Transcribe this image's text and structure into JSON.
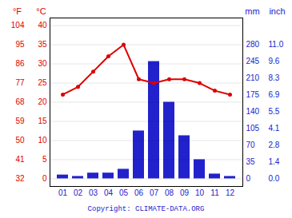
{
  "chart_data": {
    "type": "bar",
    "categories": [
      "01",
      "02",
      "03",
      "04",
      "05",
      "06",
      "07",
      "08",
      "09",
      "10",
      "11",
      "12"
    ],
    "series": [
      {
        "type": "bar",
        "axis": "y2",
        "color": "#2222cc",
        "values": [
          8,
          5,
          12,
          12,
          20,
          100,
          245,
          160,
          90,
          40,
          10,
          5
        ]
      },
      {
        "type": "line",
        "marker": "circle",
        "color": "#dd0000",
        "values": [
          22,
          24,
          28,
          32,
          35,
          26,
          25,
          26,
          26,
          25,
          23,
          22
        ]
      }
    ],
    "ylabel": "°C",
    "ylim": [
      -2.0,
      42.0
    ],
    "yticks": [
      0,
      5,
      10,
      15,
      20,
      25,
      30,
      35,
      40
    ],
    "y_alt_label": "°F",
    "y_alt_ticks": [
      {
        "value": 0,
        "label": "32"
      },
      {
        "value": 5,
        "label": "41"
      },
      {
        "value": 10,
        "label": "50"
      },
      {
        "value": 15,
        "label": "59"
      },
      {
        "value": 20,
        "label": "68"
      },
      {
        "value": 25,
        "label": "77"
      },
      {
        "value": 30,
        "label": "86"
      },
      {
        "value": 35,
        "label": "95"
      },
      {
        "value": 40,
        "label": "104"
      }
    ],
    "y2label": "mm",
    "y2lim": [
      -16.0,
      336.0
    ],
    "y2ticks": [
      0,
      35,
      70,
      105,
      140,
      175,
      210,
      245,
      280
    ],
    "y2_alt_label": "inch",
    "y2_alt_ticks": [
      {
        "value": 0,
        "label": "0.0"
      },
      {
        "value": 35,
        "label": "1.4"
      },
      {
        "value": 70,
        "label": "2.8"
      },
      {
        "value": 105,
        "label": "4.1"
      },
      {
        "value": 140,
        "label": "5.5"
      },
      {
        "value": 175,
        "label": "6.9"
      },
      {
        "value": 210,
        "label": "8.3"
      },
      {
        "value": 245,
        "label": "9.6"
      },
      {
        "value": 280,
        "label": "11.0"
      }
    ],
    "grid": true,
    "caption": "Copyright: CLIMATE-DATA.ORG"
  }
}
